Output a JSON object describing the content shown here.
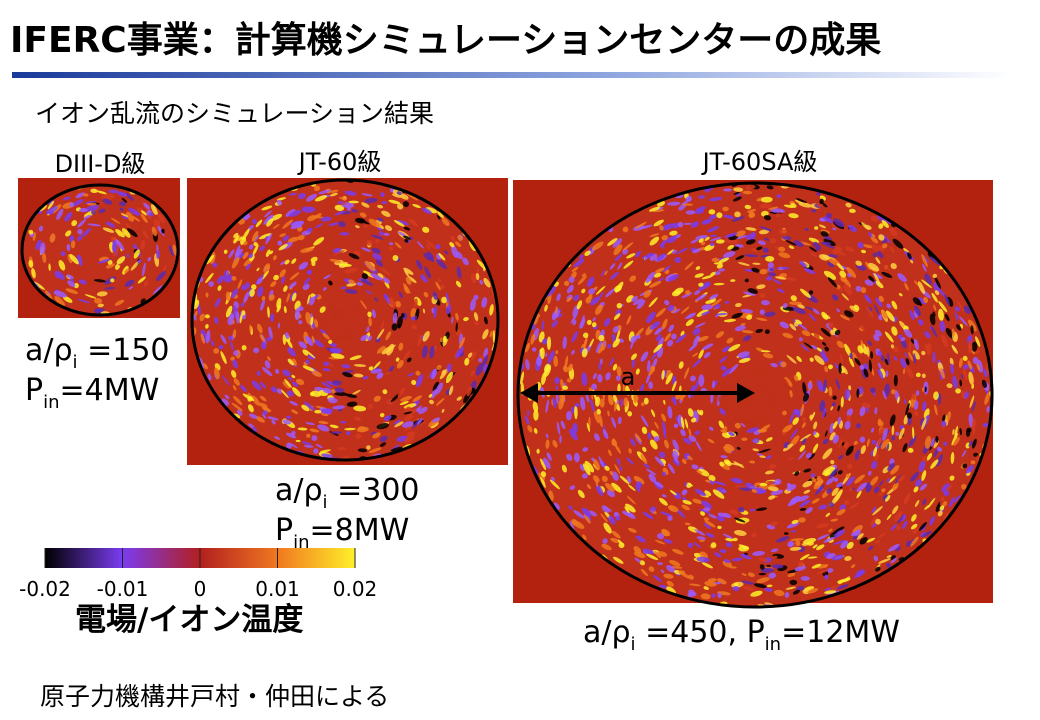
{
  "title": "IFERC事業：計算機シミュレーションセンターの成果",
  "subtitle": "イオン乱流のシミュレーション結果",
  "panels": [
    {
      "label": "DIII-D級",
      "captions": [
        [
          "a/ρ",
          "i",
          " =150"
        ],
        [
          "P",
          "in",
          "=4MW"
        ]
      ]
    },
    {
      "label": "JT-60級",
      "captions": [
        [
          "a/ρ",
          "i",
          " =300"
        ],
        [
          "P",
          "in",
          "=8MW"
        ]
      ]
    },
    {
      "label": "JT-60SA級",
      "arrow_label": "a",
      "captions": [
        [
          "a/ρ",
          "i",
          " =450, P",
          "in",
          "=12MW"
        ]
      ]
    }
  ],
  "colorbar": {
    "lim": [
      -0.02,
      0.02
    ],
    "ticks": [
      -0.02,
      -0.01,
      0,
      0.01,
      0.02
    ],
    "label": "電場/イオン温度"
  },
  "credit": "原子力機構井戸村・仲田による"
}
